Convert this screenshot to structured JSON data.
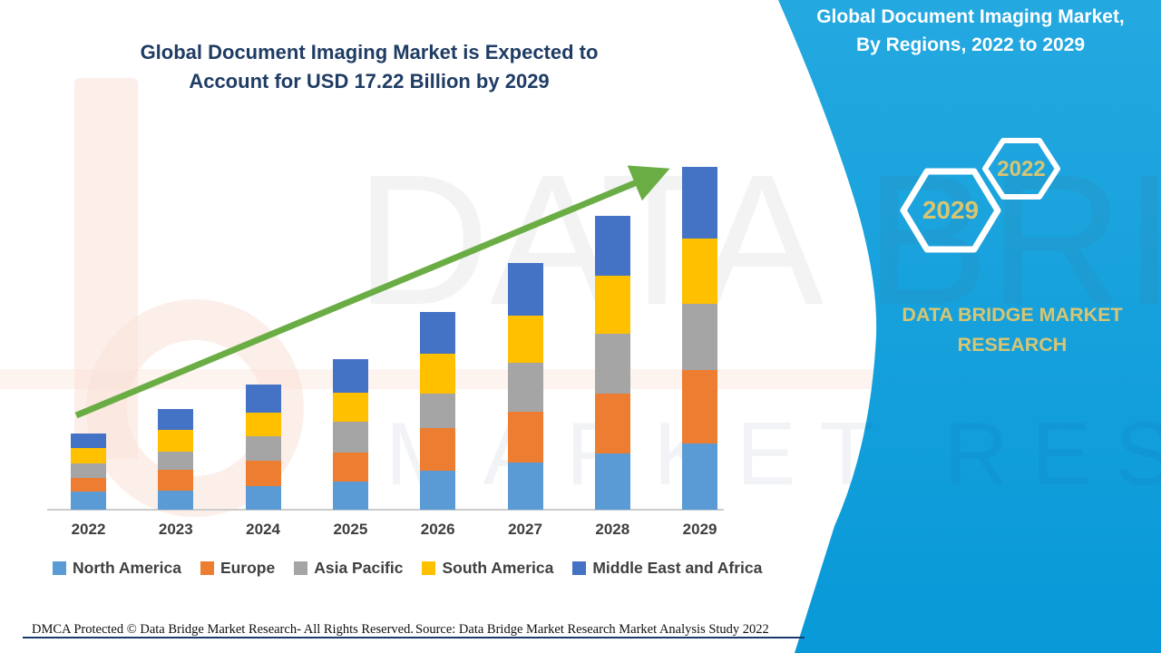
{
  "main_title": {
    "line1": "Global Document Imaging Market is Expected to",
    "line2": "Account for USD 17.22 Billion by 2029",
    "color": "#1F3C64"
  },
  "side_panel": {
    "title_line1": "Global Document Imaging Market,",
    "title_line2": "By Regions, 2022 to 2029",
    "hexagon_large_label": "2029",
    "hexagon_small_label": "2022",
    "brand_name": "DATA BRIDGE MARKET RESEARCH",
    "bg_color": "#0FA0DC",
    "accent_text_color": "#D8C572"
  },
  "watermark": {
    "text_top": "DATA BRIDGE",
    "text_bottom": "MARKET RESEARCH"
  },
  "footer": {
    "left": "DMCA Protected © Data Bridge Market Research- All Rights Reserved.",
    "right": "Source: Data Bridge Market Research Market Analysis Study 2022"
  },
  "chart_data": {
    "type": "bar",
    "subtype": "stacked-vertical",
    "title": "Global Document Imaging Market is Expected to Account for USD 17.22 Billion by 2029",
    "categories": [
      "2022",
      "2023",
      "2024",
      "2025",
      "2026",
      "2027",
      "2028",
      "2029"
    ],
    "series": [
      {
        "name": "North America",
        "color": "#5B9BD5",
        "values": [
          20,
          21,
          26,
          31,
          43,
          52,
          62,
          73
        ]
      },
      {
        "name": "Europe",
        "color": "#ED7D31",
        "values": [
          15,
          23,
          28,
          32,
          47,
          56,
          66,
          81
        ]
      },
      {
        "name": "Asia Pacific",
        "color": "#A5A5A5",
        "values": [
          16,
          20,
          27,
          34,
          38,
          54,
          66,
          73
        ]
      },
      {
        "name": "South America",
        "color": "#FFC000",
        "values": [
          17,
          24,
          26,
          32,
          44,
          52,
          64,
          72
        ]
      },
      {
        "name": "Middle East and Africa",
        "color": "#4472C4",
        "values": [
          16,
          23,
          31,
          37,
          46,
          58,
          66,
          79
        ]
      }
    ],
    "values_unit": "px (chart shows no value axis; regions stacked roughly equally)",
    "estimated_totals_usd_billion": [
      3.83,
      5.06,
      6.29,
      7.56,
      9.93,
      12.39,
      14.76,
      17.22
    ],
    "xlabel": "",
    "ylabel": "",
    "grid": false,
    "legend_position": "bottom-left",
    "annotations": [
      {
        "type": "trend-arrow",
        "direction": "up",
        "color": "#6BAD45"
      }
    ]
  }
}
